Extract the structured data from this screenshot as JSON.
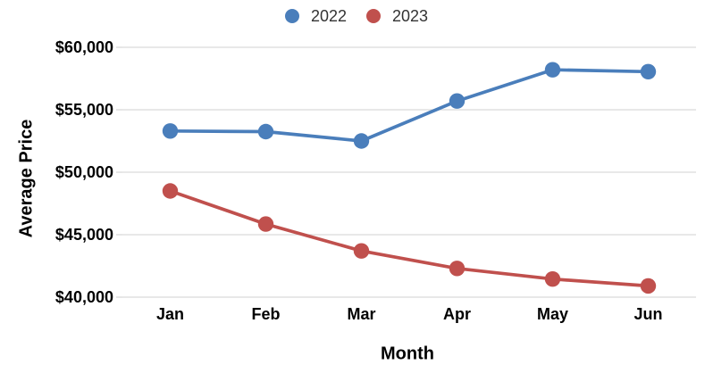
{
  "chart_data": {
    "type": "line",
    "title": "",
    "categories": [
      "Jan",
      "Feb",
      "Mar",
      "Apr",
      "May",
      "Jun"
    ],
    "series": [
      {
        "name": "2022",
        "color": "#4A7EBB",
        "values": [
          53300,
          53250,
          52500,
          55700,
          58200,
          58050
        ]
      },
      {
        "name": "2023",
        "color": "#C0504D",
        "values": [
          48500,
          45850,
          43700,
          42300,
          41450,
          40900
        ]
      }
    ],
    "xlabel": "Month",
    "ylabel": "Average Price",
    "ylim": [
      40000,
      60000
    ],
    "yticks": [
      40000,
      45000,
      50000,
      55000,
      60000
    ],
    "ytick_labels": [
      "$40,000",
      "$45,000",
      "$50,000",
      "$55,000",
      "$60,000"
    ],
    "grid": "horizontal",
    "grid_color": "#d9d9d9",
    "background_color": "#ffffff",
    "axis_text_color": "#000000",
    "legend_position": "top-center",
    "legend_text_color": "#333333",
    "marker_radius": 8.7,
    "line_width": 3.7
  }
}
